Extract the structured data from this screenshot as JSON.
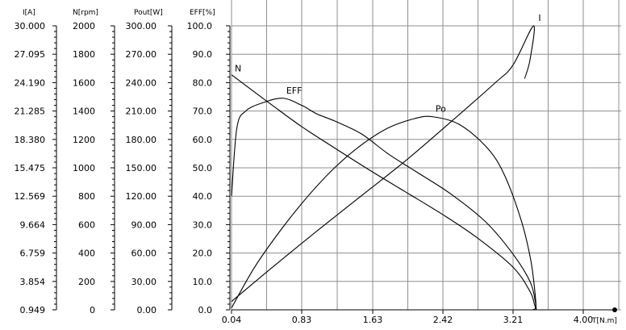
{
  "chart_data": {
    "type": "line",
    "title": "",
    "x_axis": {
      "label": "T[N.m]",
      "ticks": [
        "0.04",
        "0.83",
        "1.63",
        "2.42",
        "3.21",
        "4.00"
      ],
      "range": [
        0.04,
        4.0
      ]
    },
    "y_axes": [
      {
        "label": "I[A]",
        "range": [
          0.949,
          30.0
        ],
        "ticks": [
          "30.000",
          "27.095",
          "24.190",
          "21.285",
          "18.380",
          "15.475",
          "12.569",
          "9.664",
          "6.759",
          "3.854",
          "0.949"
        ]
      },
      {
        "label": "N[rpm]",
        "range": [
          0,
          2000
        ],
        "ticks": [
          "2000",
          "1800",
          "1600",
          "1400",
          "1200",
          "1000",
          "800",
          "600",
          "400",
          "200",
          "0"
        ]
      },
      {
        "label": "Pout[W]",
        "range": [
          0,
          300
        ],
        "ticks": [
          "300.00",
          "270.00",
          "240.00",
          "210.00",
          "180.00",
          "150.00",
          "120.00",
          "90.00",
          "60.00",
          "30.00",
          "0.00"
        ]
      },
      {
        "label": "EFF[%]",
        "range": [
          0,
          100
        ],
        "ticks": [
          "100.0",
          "90.0",
          "80.0",
          "70.0",
          "60.0",
          "50.0",
          "40.0",
          "30.0",
          "20.0",
          "10.0",
          "0.0"
        ]
      }
    ],
    "grid": true,
    "series": [
      {
        "name": "I",
        "axis": "I[A]",
        "x": [
          0.04,
          0.5,
          1.0,
          1.5,
          2.0,
          2.5,
          3.0,
          3.21,
          3.44,
          3.4,
          3.34
        ],
        "y": [
          1.8,
          5.3,
          9.0,
          12.6,
          16.2,
          20.1,
          24.1,
          26.0,
          30.0,
          26.5,
          24.6
        ]
      },
      {
        "name": "N",
        "axis": "N[rpm]",
        "x": [
          0.04,
          0.2,
          0.5,
          0.83,
          1.2,
          1.63,
          2.0,
          2.42,
          2.8,
          3.21,
          3.4,
          3.45,
          3.46,
          3.43
        ],
        "y": [
          1655,
          1580,
          1440,
          1290,
          1140,
          970,
          830,
          670,
          510,
          300,
          130,
          40,
          10,
          0
        ]
      },
      {
        "name": "EFF",
        "axis": "EFF[%]",
        "x": [
          0.04,
          0.1,
          0.2,
          0.4,
          0.62,
          0.83,
          1.0,
          1.2,
          1.5,
          1.8,
          2.1,
          2.5,
          2.9,
          3.2,
          3.4,
          3.46,
          3.47
        ],
        "y": [
          40.0,
          64.0,
          70.0,
          73.0,
          74.5,
          72.0,
          69.0,
          66.5,
          62.0,
          55.0,
          49.0,
          41.0,
          31.0,
          20.0,
          10.0,
          3.0,
          0.0
        ]
      },
      {
        "name": "Po",
        "axis": "Pout[W]",
        "x": [
          0.04,
          0.3,
          0.6,
          0.9,
          1.2,
          1.5,
          1.8,
          2.1,
          2.3,
          2.6,
          2.9,
          3.1,
          3.3,
          3.41,
          3.46,
          3.47
        ],
        "y": [
          2,
          45,
          85,
          120,
          150,
          174,
          192,
          202,
          204,
          196,
          173,
          145,
          95,
          52,
          15,
          0
        ]
      }
    ],
    "annotations": [
      "I",
      "N",
      "EFF",
      "Po"
    ]
  }
}
